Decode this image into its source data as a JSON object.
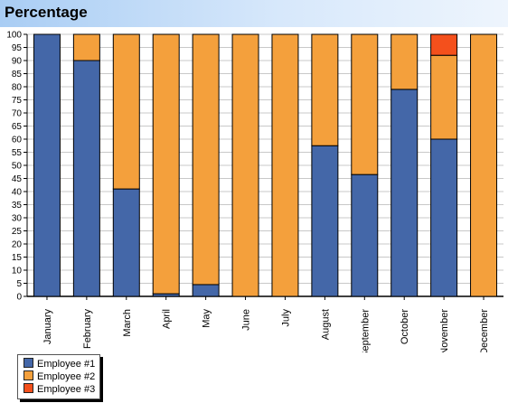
{
  "chart_data": {
    "type": "bar",
    "stacked": true,
    "title": "Percentage",
    "categories": [
      "January",
      "February",
      "March",
      "April",
      "May",
      "June",
      "July",
      "August",
      "September",
      "October",
      "November",
      "December"
    ],
    "series": [
      {
        "name": "Employee #1",
        "color": "#4467a8",
        "values": [
          100,
          90,
          41,
          1,
          4.5,
          0,
          0,
          57.5,
          46.5,
          79,
          60,
          0
        ]
      },
      {
        "name": "Employee #2",
        "color": "#f4a03c",
        "values": [
          0,
          10,
          59,
          99,
          95.5,
          100,
          100,
          42.5,
          53.5,
          21,
          32,
          100
        ]
      },
      {
        "name": "Employee #3",
        "color": "#f4501c",
        "values": [
          0,
          0,
          0,
          0,
          0,
          0,
          0,
          0,
          0,
          0,
          8,
          0
        ]
      }
    ],
    "ylim": [
      0,
      100
    ],
    "yticks": [
      0,
      5,
      10,
      15,
      20,
      25,
      30,
      35,
      40,
      45,
      50,
      55,
      60,
      65,
      70,
      75,
      80,
      85,
      90,
      95,
      100
    ],
    "grid": true,
    "legend_position": "bottom-left"
  }
}
